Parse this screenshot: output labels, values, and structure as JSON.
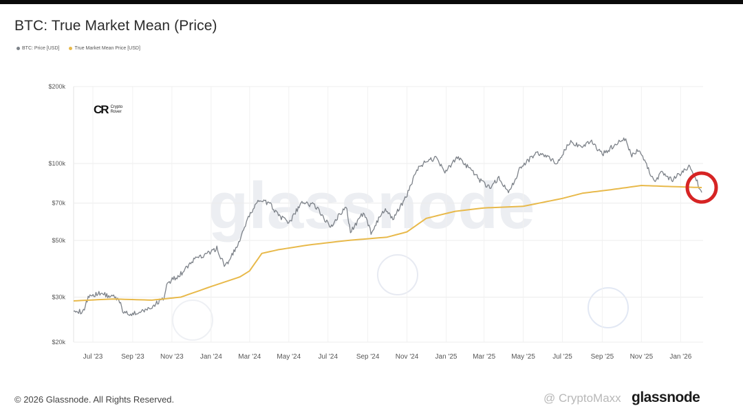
{
  "title": "BTC: True Market Mean (Price)",
  "legend": [
    {
      "label": "BTC: Price [USD]",
      "color": "#7d8289"
    },
    {
      "label": "True Market Mean Price [USD]",
      "color": "#e8b94a"
    }
  ],
  "footer": "© 2026 Glassnode. All Rights Reserved.",
  "brand": "glassnode",
  "watermark_text": "glassnode",
  "overlay_logo": {
    "mark": "CR",
    "line1": "Crypto",
    "line2": "Rover"
  },
  "social_handle": "@ CryptoMaxx",
  "highlight": {
    "color": "#d62424",
    "icon": "red-circle-highlight"
  },
  "chart_data": {
    "type": "line",
    "title": "BTC: True Market Mean (Price)",
    "yscale": "log",
    "ylim": [
      20000,
      200000
    ],
    "xlim": [
      "2023-06-01",
      "2026-02-05"
    ],
    "y_ticks": [
      {
        "value": 20000,
        "label": "$20k"
      },
      {
        "value": 30000,
        "label": "$30k"
      },
      {
        "value": 50000,
        "label": "$50k"
      },
      {
        "value": 70000,
        "label": "$70k"
      },
      {
        "value": 100000,
        "label": "$100k"
      },
      {
        "value": 200000,
        "label": "$200k"
      }
    ],
    "x_ticks": [
      {
        "date": "2023-07-01",
        "label": "Jul '23"
      },
      {
        "date": "2023-09-01",
        "label": "Sep '23"
      },
      {
        "date": "2023-11-01",
        "label": "Nov '23"
      },
      {
        "date": "2024-01-01",
        "label": "Jan '24"
      },
      {
        "date": "2024-03-01",
        "label": "Mar '24"
      },
      {
        "date": "2024-05-01",
        "label": "May '24"
      },
      {
        "date": "2024-07-01",
        "label": "Jul '24"
      },
      {
        "date": "2024-09-01",
        "label": "Sep '24"
      },
      {
        "date": "2024-11-01",
        "label": "Nov '24"
      },
      {
        "date": "2025-01-01",
        "label": "Jan '25"
      },
      {
        "date": "2025-03-01",
        "label": "Mar '25"
      },
      {
        "date": "2025-05-01",
        "label": "May '25"
      },
      {
        "date": "2025-07-01",
        "label": "Jul '25"
      },
      {
        "date": "2025-09-01",
        "label": "Sep '25"
      },
      {
        "date": "2025-11-01",
        "label": "Nov '25"
      },
      {
        "date": "2026-01-01",
        "label": "Jan '26"
      }
    ],
    "series": [
      {
        "name": "BTC: Price [USD]",
        "color": "#7d8289",
        "points": [
          [
            "2023-06-01",
            27000
          ],
          [
            "2023-06-15",
            26000
          ],
          [
            "2023-06-25",
            30500
          ],
          [
            "2023-07-15",
            31000
          ],
          [
            "2023-08-10",
            29500
          ],
          [
            "2023-08-18",
            26000
          ],
          [
            "2023-09-10",
            25800
          ],
          [
            "2023-10-01",
            27500
          ],
          [
            "2023-10-20",
            30000
          ],
          [
            "2023-10-25",
            34000
          ],
          [
            "2023-11-15",
            37000
          ],
          [
            "2023-12-05",
            42000
          ],
          [
            "2023-12-20",
            43500
          ],
          [
            "2024-01-10",
            46500
          ],
          [
            "2024-01-23",
            39500
          ],
          [
            "2024-02-10",
            47000
          ],
          [
            "2024-02-28",
            61000
          ],
          [
            "2024-03-14",
            72000
          ],
          [
            "2024-04-01",
            69500
          ],
          [
            "2024-04-15",
            63000
          ],
          [
            "2024-05-01",
            58000
          ],
          [
            "2024-05-20",
            70000
          ],
          [
            "2024-06-10",
            69000
          ],
          [
            "2024-07-05",
            56500
          ],
          [
            "2024-07-29",
            68500
          ],
          [
            "2024-08-05",
            54000
          ],
          [
            "2024-08-25",
            64000
          ],
          [
            "2024-09-06",
            54000
          ],
          [
            "2024-09-27",
            66000
          ],
          [
            "2024-10-10",
            60500
          ],
          [
            "2024-10-29",
            72500
          ],
          [
            "2024-11-12",
            89000
          ],
          [
            "2024-11-22",
            98500
          ],
          [
            "2024-12-17",
            106000
          ],
          [
            "2024-12-30",
            93000
          ],
          [
            "2025-01-20",
            106000
          ],
          [
            "2025-02-03",
            97000
          ],
          [
            "2025-02-27",
            84000
          ],
          [
            "2025-03-10",
            80000
          ],
          [
            "2025-03-24",
            88000
          ],
          [
            "2025-04-08",
            76500
          ],
          [
            "2025-04-25",
            94500
          ],
          [
            "2025-05-22",
            111000
          ],
          [
            "2025-06-22",
            101000
          ],
          [
            "2025-07-14",
            122000
          ],
          [
            "2025-08-01",
            114000
          ],
          [
            "2025-08-14",
            123500
          ],
          [
            "2025-09-01",
            108500
          ],
          [
            "2025-09-18",
            117000
          ],
          [
            "2025-10-06",
            125000
          ],
          [
            "2025-10-17",
            107000
          ],
          [
            "2025-10-28",
            114000
          ],
          [
            "2025-11-21",
            84500
          ],
          [
            "2025-12-03",
            93000
          ],
          [
            "2025-12-18",
            86000
          ],
          [
            "2026-01-14",
            97000
          ],
          [
            "2026-01-24",
            88000
          ],
          [
            "2026-02-03",
            77000
          ]
        ]
      },
      {
        "name": "True Market Mean Price [USD]",
        "color": "#e8b94a",
        "points": [
          [
            "2023-06-01",
            29000
          ],
          [
            "2023-08-01",
            29500
          ],
          [
            "2023-10-01",
            29200
          ],
          [
            "2023-11-15",
            30000
          ],
          [
            "2024-01-01",
            33000
          ],
          [
            "2024-02-15",
            36000
          ],
          [
            "2024-03-01",
            38000
          ],
          [
            "2024-03-20",
            44500
          ],
          [
            "2024-04-15",
            46000
          ],
          [
            "2024-06-01",
            48000
          ],
          [
            "2024-08-01",
            50000
          ],
          [
            "2024-10-01",
            51500
          ],
          [
            "2024-11-01",
            54000
          ],
          [
            "2024-12-01",
            61000
          ],
          [
            "2025-01-15",
            65000
          ],
          [
            "2025-03-01",
            67000
          ],
          [
            "2025-05-01",
            68000
          ],
          [
            "2025-07-01",
            73000
          ],
          [
            "2025-08-01",
            76500
          ],
          [
            "2025-09-15",
            79000
          ],
          [
            "2025-11-01",
            82000
          ],
          [
            "2025-12-01",
            81500
          ],
          [
            "2026-02-03",
            80500
          ]
        ]
      }
    ]
  }
}
